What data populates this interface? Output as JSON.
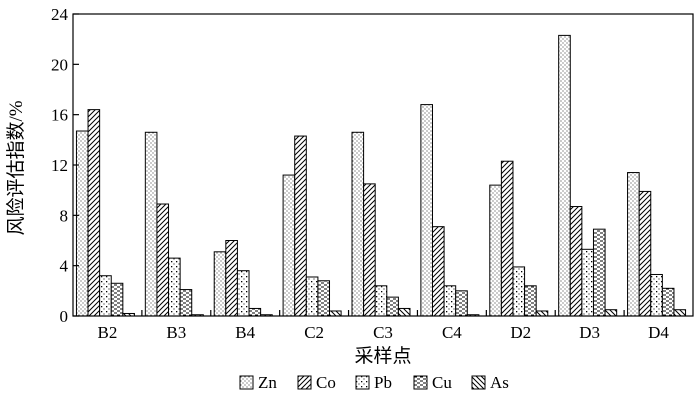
{
  "chart_data": {
    "type": "bar",
    "title": "",
    "xlabel": "采样点",
    "ylabel": "风险评估指数/%",
    "ylim": [
      0,
      24
    ],
    "yticks": [
      "0",
      "4",
      "8",
      "12",
      "16",
      "20",
      "24"
    ],
    "categories": [
      "B2",
      "B3",
      "B4",
      "C2",
      "C3",
      "C4",
      "D2",
      "D3",
      "D4"
    ],
    "series": [
      {
        "name": "Zn",
        "values": [
          14.7,
          14.6,
          5.1,
          11.2,
          14.6,
          16.8,
          10.4,
          22.3,
          11.4
        ]
      },
      {
        "name": "Co",
        "values": [
          16.4,
          8.9,
          6.0,
          14.3,
          10.5,
          7.1,
          12.3,
          8.7,
          9.9
        ]
      },
      {
        "name": "Pb",
        "values": [
          3.2,
          4.6,
          3.6,
          3.1,
          2.4,
          2.4,
          3.9,
          5.3,
          3.3
        ]
      },
      {
        "name": "Cu",
        "values": [
          2.6,
          2.1,
          0.6,
          2.8,
          1.5,
          2.0,
          2.4,
          6.9,
          2.2
        ]
      },
      {
        "name": "As",
        "values": [
          0.2,
          0.1,
          0.1,
          0.4,
          0.6,
          0.1,
          0.4,
          0.5,
          0.5
        ]
      }
    ],
    "legend_position": "bottom",
    "grid": false
  }
}
